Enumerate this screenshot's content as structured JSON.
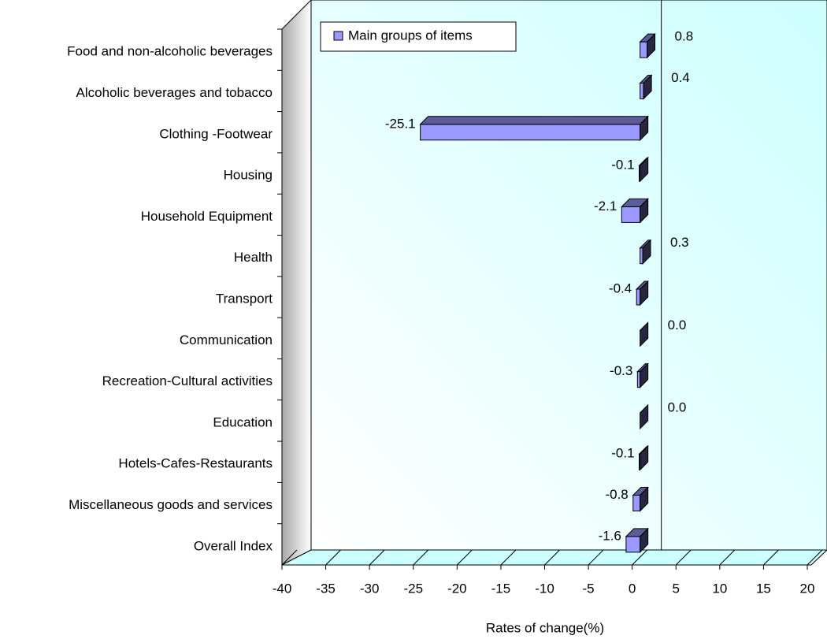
{
  "chart_data": {
    "type": "bar",
    "orientation": "horizontal",
    "categories": [
      "Food and non-alcoholic beverages",
      "Alcoholic beverages and tobacco",
      "Clothing -Footwear",
      "Housing",
      "Household Equipment",
      "Health",
      "Transport",
      "Communication",
      "Recreation-Cultural activities",
      "Education",
      "Hotels-Cafes-Restaurants",
      "Miscellaneous goods and services",
      "Overall Index"
    ],
    "series": [
      {
        "name": "Main groups of items",
        "color": "#9999ff",
        "values": [
          0.8,
          0.4,
          -25.1,
          -0.1,
          -2.1,
          0.3,
          -0.4,
          0.0,
          -0.3,
          0.0,
          -0.1,
          -0.8,
          -1.6
        ],
        "value_labels": [
          "0.8",
          "0.4",
          "-25.1",
          "-0.1",
          "-2.1",
          "0.3",
          "-0.4",
          "0.0",
          "-0.3",
          "0.0",
          "-0.1",
          "-0.8",
          "-1.6"
        ]
      }
    ],
    "xlabel": "Rates of change(%)",
    "xlim": [
      -40,
      20
    ],
    "xticks": [
      -40,
      -35,
      -30,
      -25,
      -20,
      -15,
      -10,
      -5,
      0,
      5,
      10,
      15,
      20
    ],
    "legend": "top-left"
  }
}
